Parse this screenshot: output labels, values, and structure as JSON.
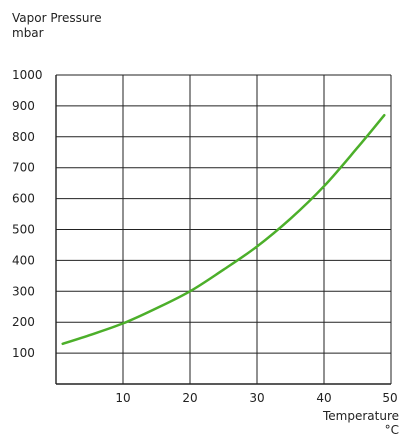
{
  "chart_data": {
    "type": "line",
    "title": "",
    "ylabel": "Vapor Pressure",
    "ylabel_unit": "mbar",
    "xlabel": "Temperature",
    "xlabel_unit": "°C",
    "xlim": [
      0,
      50
    ],
    "ylim": [
      0,
      1000
    ],
    "x_ticks": [
      10,
      20,
      30,
      40,
      50
    ],
    "y_ticks": [
      100,
      200,
      300,
      400,
      500,
      600,
      700,
      800,
      900,
      1000
    ],
    "grid": true,
    "legend": "none",
    "series": [
      {
        "color": "#4caf2a",
        "x": [
          1,
          5,
          10,
          15,
          20,
          25,
          30,
          35,
          40,
          45,
          49
        ],
        "y": [
          130,
          158,
          196,
          245,
          300,
          370,
          445,
          535,
          640,
          765,
          870
        ]
      }
    ]
  }
}
